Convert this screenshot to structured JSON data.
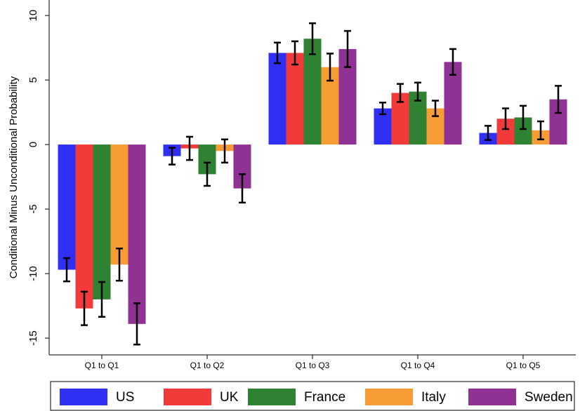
{
  "chart_data": {
    "type": "bar",
    "y_label": "Conditional Minus Unconditional Probability",
    "categories": [
      "Q1 to Q1",
      "Q1 to Q2",
      "Q1 to Q3",
      "Q1 to Q4",
      "Q1 to Q5"
    ],
    "series": [
      {
        "name": "US",
        "color": "#3030f4",
        "values": [
          -9.7,
          -0.9,
          7.1,
          2.8,
          0.9
        ],
        "errors": [
          0.9,
          0.65,
          0.8,
          0.45,
          0.55
        ]
      },
      {
        "name": "UK",
        "color": "#f23a3a",
        "values": [
          -12.7,
          -0.3,
          7.1,
          4.0,
          2.0
        ],
        "errors": [
          1.3,
          0.9,
          0.9,
          0.7,
          0.8
        ]
      },
      {
        "name": "France",
        "color": "#2f8231",
        "values": [
          -12.0,
          -2.3,
          8.2,
          4.1,
          2.1
        ],
        "errors": [
          1.35,
          0.9,
          1.2,
          0.7,
          0.9
        ]
      },
      {
        "name": "Italy",
        "color": "#f89c35",
        "values": [
          -9.3,
          -0.5,
          6.0,
          2.8,
          1.1
        ],
        "errors": [
          1.25,
          0.9,
          1.05,
          0.6,
          0.7
        ]
      },
      {
        "name": "Sweden",
        "color": "#8f3294",
        "values": [
          -13.9,
          -3.4,
          7.4,
          6.4,
          3.5
        ],
        "errors": [
          1.6,
          1.1,
          1.4,
          1.0,
          1.05
        ]
      }
    ],
    "ylim": [
      -16.3,
      11.2
    ],
    "yticks": [
      -15,
      -10,
      -5,
      0,
      5,
      10
    ],
    "legend": "bottom"
  }
}
